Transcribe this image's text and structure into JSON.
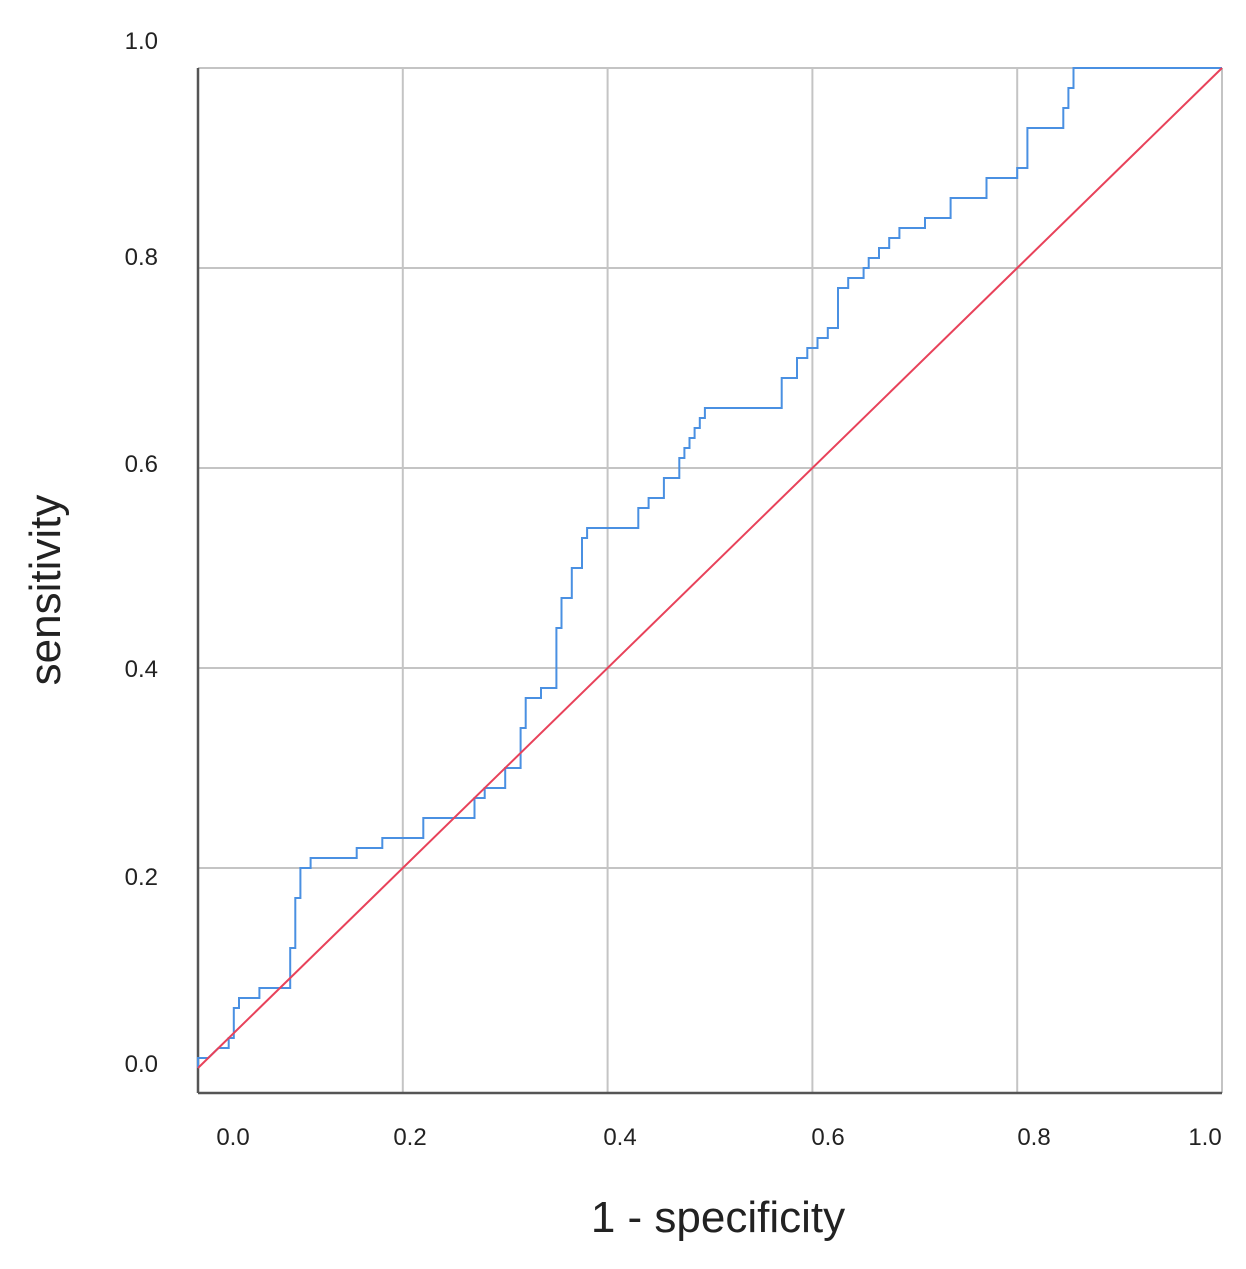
{
  "chart_data": {
    "type": "line",
    "title": "",
    "xlabel": "1 - specificity",
    "ylabel": "sensitivity",
    "xlim": [
      0,
      1
    ],
    "ylim": [
      0,
      1
    ],
    "x_ticks": [
      "0.0",
      "0.2",
      "0.4",
      "0.6",
      "0.8",
      "1.0"
    ],
    "y_ticks": [
      "0.0",
      "0.2",
      "0.4",
      "0.6",
      "0.8",
      "1.0"
    ],
    "grid": true,
    "legend": "none",
    "series": [
      {
        "color": "#4a90e2",
        "x": [
          0.0,
          0.0,
          0.01,
          0.02,
          0.03,
          0.03,
          0.035,
          0.035,
          0.04,
          0.04,
          0.06,
          0.06,
          0.09,
          0.09,
          0.095,
          0.095,
          0.1,
          0.1,
          0.11,
          0.11,
          0.155,
          0.155,
          0.18,
          0.18,
          0.22,
          0.22,
          0.27,
          0.27,
          0.28,
          0.28,
          0.3,
          0.3,
          0.315,
          0.315,
          0.32,
          0.32,
          0.335,
          0.335,
          0.35,
          0.35,
          0.355,
          0.355,
          0.365,
          0.365,
          0.375,
          0.375,
          0.38,
          0.38,
          0.43,
          0.43,
          0.44,
          0.44,
          0.455,
          0.455,
          0.47,
          0.47,
          0.475,
          0.475,
          0.48,
          0.48,
          0.485,
          0.485,
          0.49,
          0.49,
          0.495,
          0.495,
          0.57,
          0.57,
          0.585,
          0.585,
          0.595,
          0.595,
          0.605,
          0.605,
          0.615,
          0.615,
          0.625,
          0.625,
          0.635,
          0.635,
          0.65,
          0.65,
          0.655,
          0.655,
          0.665,
          0.665,
          0.675,
          0.675,
          0.685,
          0.685,
          0.71,
          0.71,
          0.735,
          0.735,
          0.77,
          0.77,
          0.8,
          0.8,
          0.81,
          0.81,
          0.845,
          0.845,
          0.85,
          0.85,
          0.855,
          0.855,
          0.86,
          1.0
        ],
        "y": [
          0.0,
          0.01,
          0.01,
          0.02,
          0.02,
          0.03,
          0.03,
          0.06,
          0.06,
          0.07,
          0.07,
          0.08,
          0.08,
          0.12,
          0.12,
          0.17,
          0.17,
          0.2,
          0.2,
          0.21,
          0.21,
          0.22,
          0.22,
          0.23,
          0.23,
          0.25,
          0.25,
          0.27,
          0.27,
          0.28,
          0.28,
          0.3,
          0.3,
          0.34,
          0.34,
          0.37,
          0.37,
          0.38,
          0.38,
          0.44,
          0.44,
          0.47,
          0.47,
          0.5,
          0.5,
          0.53,
          0.53,
          0.54,
          0.54,
          0.56,
          0.56,
          0.57,
          0.57,
          0.59,
          0.59,
          0.61,
          0.61,
          0.62,
          0.62,
          0.63,
          0.63,
          0.64,
          0.64,
          0.65,
          0.65,
          0.66,
          0.66,
          0.69,
          0.69,
          0.71,
          0.71,
          0.72,
          0.72,
          0.73,
          0.73,
          0.74,
          0.74,
          0.78,
          0.78,
          0.79,
          0.79,
          0.8,
          0.8,
          0.81,
          0.81,
          0.82,
          0.82,
          0.83,
          0.83,
          0.84,
          0.84,
          0.85,
          0.85,
          0.87,
          0.87,
          0.89,
          0.89,
          0.9,
          0.9,
          0.94,
          0.94,
          0.96,
          0.96,
          0.98,
          0.98,
          1.0,
          1.0,
          1.0
        ]
      },
      {
        "color": "#e8425a",
        "x": [
          0.0,
          1.0
        ],
        "y": [
          0.0,
          1.0
        ]
      }
    ]
  }
}
